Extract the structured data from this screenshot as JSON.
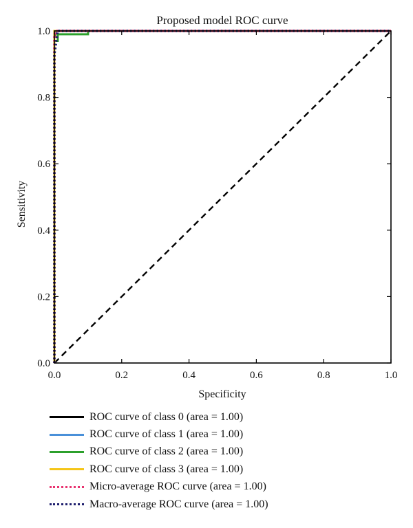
{
  "chart_data": {
    "type": "line",
    "title": "Proposed model ROC curve",
    "xlabel": "Specificity",
    "ylabel": "Sensitivity",
    "xlim": [
      0.0,
      1.0
    ],
    "ylim": [
      0.0,
      1.0
    ],
    "xticks": [
      "0.0",
      "0.2",
      "0.4",
      "0.6",
      "0.8",
      "1.0"
    ],
    "yticks": [
      "0.0",
      "0.2",
      "0.4",
      "0.6",
      "0.8",
      "1.0"
    ],
    "grid": false,
    "legend_position": "below",
    "series": [
      {
        "name": "ROC curve of class 0 (area = 1.00)",
        "color": "#000000",
        "style": "solid",
        "x": [
          0.0,
          0.0,
          0.005,
          1.0
        ],
        "y": [
          0.0,
          0.98,
          1.0,
          1.0
        ]
      },
      {
        "name": "ROC curve of class 1 (area = 1.00)",
        "color": "#4a90d9",
        "style": "solid",
        "x": [
          0.0,
          0.0,
          0.005,
          1.0
        ],
        "y": [
          0.0,
          0.99,
          1.0,
          1.0
        ]
      },
      {
        "name": "ROC curve of class 2 (area = 1.00)",
        "color": "#2ca02c",
        "style": "solid",
        "x": [
          0.0,
          0.0,
          0.01,
          0.01,
          0.1,
          0.1,
          1.0
        ],
        "y": [
          0.0,
          0.97,
          0.97,
          0.99,
          0.99,
          1.0,
          1.0
        ]
      },
      {
        "name": "ROC curve of class 3 (area = 1.00)",
        "color": "#f5c518",
        "style": "solid",
        "x": [
          0.0,
          0.0,
          1.0
        ],
        "y": [
          0.0,
          1.0,
          1.0
        ]
      },
      {
        "name": "Micro-average ROC curve (area = 1.00)",
        "color": "#e8336f",
        "style": "dotted",
        "x": [
          0.0,
          0.0,
          0.005,
          1.0
        ],
        "y": [
          0.0,
          0.99,
          1.0,
          1.0
        ]
      },
      {
        "name": "Macro-average ROC curve (area = 1.00)",
        "color": "#1f1f6e",
        "style": "dotted",
        "x": [
          0.0,
          0.0,
          0.01,
          1.0
        ],
        "y": [
          0.0,
          0.93,
          1.0,
          1.0
        ]
      }
    ],
    "reference_line": {
      "x": [
        0.0,
        1.0
      ],
      "y": [
        0.0,
        1.0
      ],
      "color": "#000000",
      "style": "dashed"
    }
  }
}
